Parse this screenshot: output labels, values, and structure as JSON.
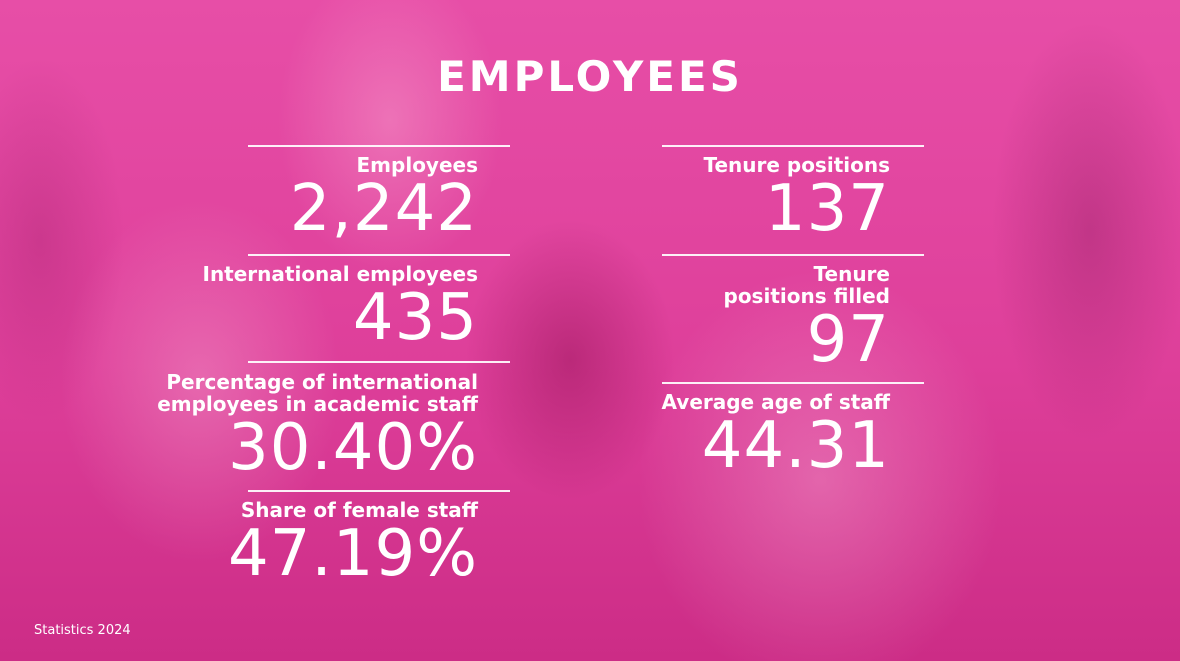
{
  "title": "EMPLOYEES",
  "left_stats": [
    {
      "label": "Employees",
      "value": "2,242"
    },
    {
      "label": "International employees",
      "value": "435"
    },
    {
      "label": "Percentage of international\nemployees in academic staff",
      "value": "30.40%"
    },
    {
      "label": "Share of female staff",
      "value": "47.19%"
    }
  ],
  "right_stats": [
    {
      "label": "Tenure positions",
      "value": "137"
    },
    {
      "label": "Tenure\npositions filled",
      "value": "97"
    },
    {
      "label": "Average age of staff",
      "value": "44.31"
    }
  ],
  "footer": "Statistics 2024",
  "colors": {
    "background": "#e04aa2",
    "text": "#ffffff"
  }
}
